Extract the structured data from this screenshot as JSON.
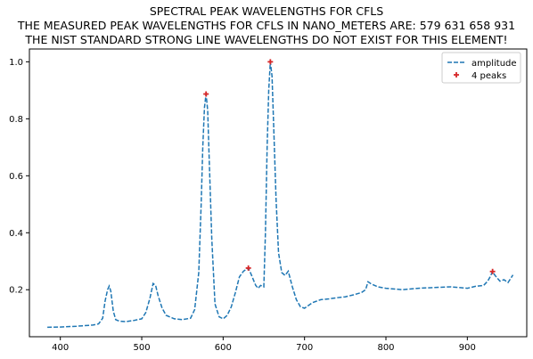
{
  "chart_data": {
    "type": "line",
    "title_lines": [
      "SPECTRAL PEAK WAVELENGTHS FOR CFLS",
      "THE MEASURED PEAK WAVELENGTHS FOR CFLS IN NANO_METERS ARE: 579 631 658 931",
      "THE NIST STANDARD STRONG LINE WAVELENGTHS DO NOT EXIST FOR THIS ELEMENT!"
    ],
    "xlabel": "",
    "ylabel": "",
    "xlim": [
      362,
      973
    ],
    "ylim": [
      0.035,
      1.045
    ],
    "x_ticks": [
      400,
      500,
      600,
      700,
      800,
      900
    ],
    "y_ticks": [
      0.2,
      0.4,
      0.6,
      0.8,
      1.0
    ],
    "y_tick_labels": [
      "0.2",
      "0.4",
      "0.6",
      "0.8",
      "1.0"
    ],
    "grid": false,
    "legend_position": "top-right",
    "series": [
      {
        "name": "amplitude",
        "style": "dashed",
        "color": "#1f77b4",
        "x": [
          384,
          400,
          420,
          440,
          447,
          452,
          455,
          458,
          460,
          462,
          465,
          468,
          472,
          480,
          490,
          500,
          505,
          510,
          514,
          517,
          520,
          525,
          530,
          540,
          550,
          560,
          565,
          570,
          573,
          575,
          577,
          579,
          581,
          583,
          586,
          590,
          595,
          600,
          605,
          610,
          615,
          620,
          625,
          631,
          635,
          640,
          643,
          646,
          650,
          652,
          654,
          656,
          658,
          660,
          662,
          665,
          668,
          672,
          676,
          680,
          685,
          690,
          695,
          700,
          710,
          720,
          730,
          740,
          750,
          760,
          770,
          775,
          778,
          782,
          790,
          800,
          820,
          840,
          860,
          880,
          900,
          910,
          920,
          925,
          928,
          931,
          934,
          940,
          945,
          950,
          956
        ],
        "y": [
          0.068,
          0.069,
          0.072,
          0.076,
          0.08,
          0.1,
          0.16,
          0.2,
          0.213,
          0.195,
          0.125,
          0.095,
          0.09,
          0.088,
          0.092,
          0.098,
          0.12,
          0.17,
          0.222,
          0.215,
          0.18,
          0.135,
          0.11,
          0.098,
          0.095,
          0.1,
          0.13,
          0.26,
          0.5,
          0.7,
          0.84,
          0.887,
          0.83,
          0.65,
          0.38,
          0.15,
          0.105,
          0.098,
          0.11,
          0.14,
          0.19,
          0.245,
          0.265,
          0.276,
          0.25,
          0.215,
          0.205,
          0.215,
          0.21,
          0.4,
          0.7,
          0.9,
          1.0,
          0.95,
          0.78,
          0.52,
          0.33,
          0.26,
          0.25,
          0.265,
          0.21,
          0.165,
          0.14,
          0.135,
          0.155,
          0.165,
          0.168,
          0.172,
          0.175,
          0.182,
          0.19,
          0.2,
          0.228,
          0.22,
          0.21,
          0.205,
          0.2,
          0.205,
          0.208,
          0.21,
          0.205,
          0.212,
          0.215,
          0.23,
          0.245,
          0.264,
          0.25,
          0.23,
          0.235,
          0.225,
          0.252
        ]
      },
      {
        "name": "4 peaks",
        "style": "marker",
        "marker": "+",
        "color": "#d62728",
        "x": [
          579,
          631,
          658,
          931
        ],
        "y": [
          0.887,
          0.276,
          1.0,
          0.264
        ]
      }
    ]
  }
}
